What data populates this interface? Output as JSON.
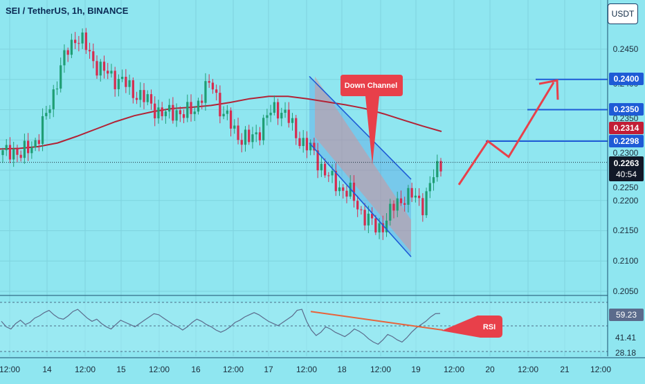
{
  "header": {
    "symbol_title": "SEI / TetherUS, 1h, BINANCE",
    "currency_badge": "USDT"
  },
  "colors": {
    "background": "#8fe6f0",
    "grid": "#7fd3de",
    "candle_up": "#1f9e74",
    "candle_down": "#d62c4f",
    "ma": "#b22235",
    "channel_line": "#1e5bd6",
    "channel_fill": "#3a7de0",
    "fall_zone": "#e58a8a",
    "level_line": "#1e5bd6",
    "arrow": "#e8404a",
    "rsi_line": "#5b6b8c",
    "rsi_trend": "#e8633a",
    "label_blue": "#1e5bd6",
    "label_red": "#c21d36",
    "label_dark": "#111827",
    "callout": "#e8404a"
  },
  "annotations": {
    "down_channel": "Down Channel",
    "rsi": "RSI"
  },
  "price_axis": {
    "ticks": [
      "0.2450",
      "0.2400",
      "0.2350",
      "0.2300",
      "0.2250",
      "0.2200",
      "0.2150",
      "0.2100",
      "0.2050"
    ],
    "levels": [
      "0.2400",
      "0.2350",
      "0.2298"
    ],
    "ma_label": "0.2314",
    "last_price": "0.2263",
    "countdown": "40:54"
  },
  "rsi_axis": {
    "value": "59.23",
    "upper_tick": "41.41",
    "lower_tick": "28.18"
  },
  "time_axis": [
    "12:00",
    "14",
    "12:00",
    "15",
    "12:00",
    "16",
    "12:00",
    "17",
    "12:00",
    "18",
    "12:00",
    "19",
    "12:00",
    "20",
    "12:00",
    "21",
    "12:00"
  ],
  "chart_data": [
    {
      "type": "candlestick",
      "title": "SEI / TetherUS, 1h, BINANCE",
      "x_labels": [
        "12:00",
        "14",
        "12:00",
        "15",
        "12:00",
        "16",
        "12:00",
        "17",
        "12:00",
        "18",
        "12:00",
        "19",
        "12:00",
        "20",
        "12:00",
        "21",
        "12:00"
      ],
      "ylim": [
        0.205,
        0.2475
      ],
      "y_ticks": [
        0.245,
        0.24,
        0.235,
        0.23,
        0.225,
        0.22,
        0.215,
        0.21,
        0.205
      ],
      "close_path": [
        0.2275,
        0.2287,
        0.2272,
        0.2291,
        0.2305,
        0.2352,
        0.2402,
        0.2445,
        0.2473,
        0.2455,
        0.243,
        0.2412,
        0.2405,
        0.2398,
        0.2382,
        0.2375,
        0.236,
        0.2349,
        0.234,
        0.235,
        0.234,
        0.2352,
        0.238,
        0.2392,
        0.2345,
        0.2325,
        0.2305,
        0.2298,
        0.2315,
        0.2338,
        0.2355,
        0.2342,
        0.2312,
        0.2295,
        0.2278,
        0.2255,
        0.2232,
        0.2222,
        0.2212,
        0.2188,
        0.2168,
        0.2152,
        0.2168,
        0.2192,
        0.2208,
        0.2205,
        0.2195,
        0.2232,
        0.2263
      ],
      "last_price": 0.2263,
      "moving_average": {
        "label": 0.2314,
        "values": [
          0.2285,
          0.2286,
          0.2289,
          0.2295,
          0.2306,
          0.2318,
          0.233,
          0.234,
          0.2347,
          0.2352,
          0.2354,
          0.2357,
          0.2362,
          0.2368,
          0.2372,
          0.2372,
          0.2368,
          0.2363,
          0.2358,
          0.2352,
          0.2343,
          0.2333,
          0.2323,
          0.2314
        ]
      },
      "resistance_levels": [
        0.24,
        0.235,
        0.2298
      ],
      "down_channel": {
        "upper": [
          0.2405,
          0.2235
        ],
        "lower": [
          0.2295,
          0.2107
        ],
        "label": "Down Channel"
      },
      "projection_path": [
        0.2226,
        0.2298,
        0.2272,
        0.2395
      ]
    },
    {
      "type": "line",
      "name": "RSI",
      "y_ticks": [
        59.23,
        41.41,
        28.18
      ],
      "current": 59.23,
      "values": [
        52,
        47,
        45,
        50,
        53,
        49,
        51,
        55,
        57,
        60,
        62,
        58,
        55,
        54,
        57,
        61,
        63,
        59,
        55,
        52,
        54,
        50,
        47,
        45,
        49,
        53,
        51,
        49,
        47,
        50,
        53,
        56,
        59,
        58,
        55,
        52,
        49,
        47,
        44,
        47,
        51,
        54,
        52,
        49,
        47,
        44,
        42,
        44,
        47,
        51,
        53,
        56,
        58,
        60,
        58,
        55,
        52,
        50,
        48,
        51,
        54,
        57,
        62,
        63,
        52,
        44,
        39,
        42,
        47,
        45,
        42,
        40,
        38,
        41,
        45,
        43,
        40,
        36,
        33,
        31,
        35,
        40,
        38,
        35,
        33,
        37,
        42,
        46,
        49,
        52,
        56,
        59,
        59.2
      ],
      "trendline": [
        61,
        44
      ]
    }
  ]
}
